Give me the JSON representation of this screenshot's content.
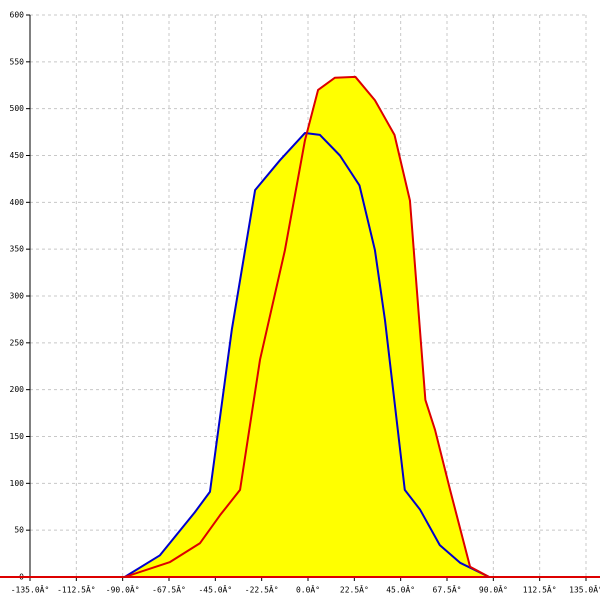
{
  "chart_data": {
    "type": "area",
    "series": [
      {
        "color": "#0000cc",
        "fill": "#ffff00",
        "x": [
          -89,
          -72,
          -55,
          -47.6,
          -37,
          -25.7,
          -13.6,
          -1.5,
          5.8,
          15.5,
          25,
          32.5,
          37.4,
          47,
          54.4,
          64,
          74,
          88
        ],
        "values": [
          0,
          23,
          69,
          91,
          264,
          413,
          445,
          474,
          472,
          450,
          418,
          349,
          274,
          93,
          72,
          34,
          15,
          0
        ]
      },
      {
        "color": "#dd0000",
        "fill": "#ffff00",
        "x": [
          -89,
          -67,
          -52.5,
          -42.7,
          -33,
          -23.3,
          -11.2,
          -1.5,
          4.9,
          13,
          23,
          32.5,
          42,
          49.5,
          57,
          61.7,
          69,
          78.7,
          88
        ],
        "values": [
          0,
          16,
          36,
          66,
          93,
          232,
          349,
          466,
          520,
          533,
          534,
          509,
          472,
          402,
          189,
          157,
          93,
          11,
          0
        ]
      }
    ],
    "xlim": [
      -135,
      135
    ],
    "xticks": [
      {
        "value": -135,
        "label": "-135.0Â°"
      },
      {
        "value": -112.5,
        "label": "-112.5Â°"
      },
      {
        "value": -90,
        "label": "-90.0Â°"
      },
      {
        "value": -67.5,
        "label": "-67.5Â°"
      },
      {
        "value": -45,
        "label": "-45.0Â°"
      },
      {
        "value": -22.5,
        "label": "-22.5Â°"
      },
      {
        "value": 0,
        "label": "0.0Â°"
      },
      {
        "value": 22.5,
        "label": "22.5Â°"
      },
      {
        "value": 45,
        "label": "45.0Â°"
      },
      {
        "value": 67.5,
        "label": "67.5Â°"
      },
      {
        "value": 90,
        "label": "90.0Â°"
      },
      {
        "value": 112.5,
        "label": "112.5Â°"
      },
      {
        "value": 135,
        "label": "135.0Â°"
      }
    ],
    "ylim": [
      0,
      600
    ],
    "yticks": [
      0,
      50,
      100,
      150,
      200,
      250,
      300,
      350,
      400,
      450,
      500,
      550,
      600
    ],
    "grid": true
  }
}
